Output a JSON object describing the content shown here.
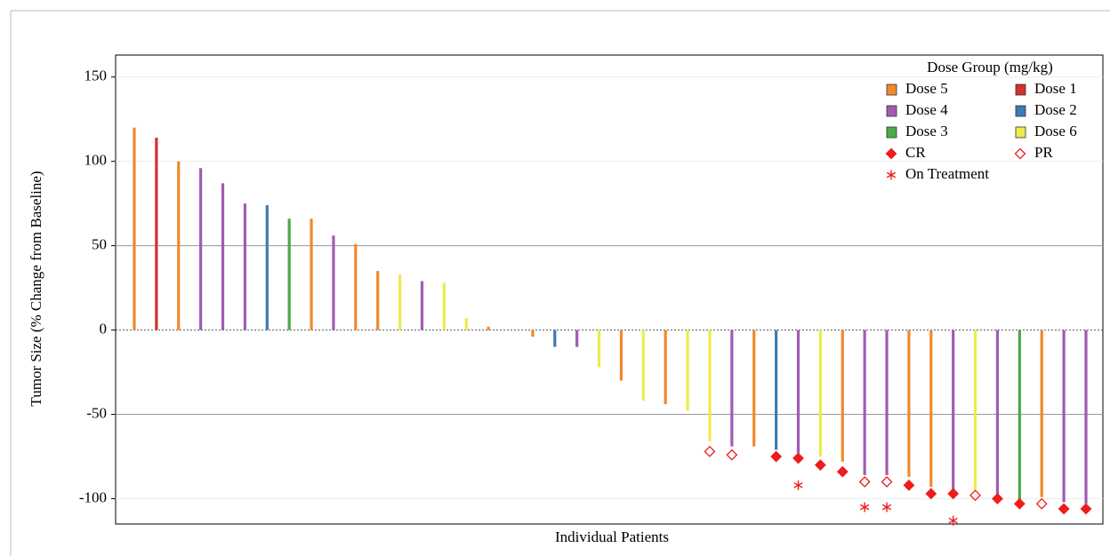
{
  "chart_data": {
    "type": "waterfall",
    "x_label": "Individual Patients",
    "y_label": "Tumor Size (% Change from Baseline)",
    "legend_title": "Dose Group (mg/kg)",
    "ylim": [
      -115,
      163
    ],
    "yticks": [
      -100,
      -50,
      0,
      50,
      100,
      150
    ],
    "reference_lines": [
      -50,
      50
    ],
    "grid": true,
    "series": [
      {
        "name": "Dose 5",
        "color": "#f0892b",
        "values": [
          120,
          null,
          100,
          null,
          null,
          null,
          null,
          null,
          66,
          null,
          51,
          35,
          null,
          null,
          null,
          null,
          2,
          null,
          -4,
          null,
          null,
          null,
          -30,
          null,
          -44,
          null,
          null,
          null,
          -69,
          null,
          null,
          null,
          -78,
          null,
          null,
          -87,
          -93,
          null,
          null,
          null,
          null,
          -99,
          null,
          null
        ]
      },
      {
        "name": "Dose 1",
        "color": "#d7302f",
        "values": [
          null,
          114,
          null,
          null,
          null,
          null,
          null,
          null,
          null,
          null,
          null,
          null,
          null,
          null,
          null,
          null,
          null,
          null,
          null,
          null,
          null,
          null,
          null,
          null,
          null,
          null,
          null,
          null,
          null,
          null,
          null,
          null,
          null,
          null,
          null,
          null,
          null,
          null,
          null,
          null,
          null,
          null,
          null,
          null
        ]
      },
      {
        "name": "Dose 4",
        "color": "#a05bb4",
        "values": [
          null,
          null,
          null,
          96,
          87,
          75,
          null,
          null,
          null,
          56,
          null,
          null,
          null,
          29,
          null,
          null,
          null,
          null,
          null,
          null,
          -10,
          null,
          null,
          null,
          null,
          null,
          null,
          -69,
          null,
          null,
          -73,
          null,
          null,
          -86,
          -86,
          null,
          null,
          -95,
          null,
          -99,
          null,
          null,
          -102,
          -103
        ]
      },
      {
        "name": "Dose 2",
        "color": "#3d7bb3",
        "values": [
          null,
          null,
          null,
          null,
          null,
          null,
          74,
          null,
          null,
          null,
          null,
          null,
          null,
          null,
          null,
          null,
          null,
          null,
          null,
          -10,
          null,
          null,
          null,
          null,
          null,
          null,
          null,
          null,
          null,
          -71,
          null,
          null,
          null,
          null,
          null,
          null,
          null,
          null,
          null,
          null,
          null,
          null,
          null,
          null
        ]
      },
      {
        "name": "Dose 3",
        "color": "#4aab47",
        "values": [
          null,
          null,
          null,
          null,
          null,
          null,
          null,
          66,
          null,
          null,
          null,
          null,
          null,
          null,
          null,
          null,
          null,
          null,
          null,
          null,
          null,
          null,
          null,
          null,
          null,
          null,
          null,
          null,
          null,
          null,
          null,
          null,
          null,
          null,
          null,
          null,
          null,
          null,
          null,
          null,
          -103,
          null,
          null,
          null
        ]
      },
      {
        "name": "Dose 6",
        "color": "#eeea4c",
        "values": [
          null,
          null,
          null,
          null,
          null,
          null,
          null,
          null,
          null,
          null,
          null,
          null,
          33,
          null,
          28,
          7,
          null,
          null,
          null,
          null,
          null,
          -22,
          null,
          -42,
          null,
          -48,
          -66,
          null,
          null,
          null,
          null,
          -75,
          null,
          null,
          null,
          null,
          null,
          null,
          -95,
          null,
          null,
          null,
          null,
          null
        ]
      }
    ],
    "markers": [
      {
        "name": "CR",
        "color": "#ee1c1c",
        "shape": "diamond-filled",
        "values": [
          null,
          null,
          null,
          null,
          null,
          null,
          null,
          null,
          null,
          null,
          null,
          null,
          null,
          null,
          null,
          null,
          null,
          null,
          null,
          null,
          null,
          null,
          null,
          null,
          null,
          null,
          null,
          null,
          null,
          -75,
          -76,
          -80,
          -84,
          null,
          null,
          -92,
          -97,
          -97,
          null,
          -100,
          -103,
          null,
          -106,
          -106
        ]
      },
      {
        "name": "PR",
        "color": "#ee1c1c",
        "shape": "diamond-open",
        "values": [
          null,
          null,
          null,
          null,
          null,
          null,
          null,
          null,
          null,
          null,
          null,
          null,
          null,
          null,
          null,
          null,
          null,
          null,
          null,
          null,
          null,
          null,
          null,
          null,
          null,
          null,
          -72,
          -74,
          null,
          null,
          null,
          null,
          null,
          -90,
          -90,
          null,
          null,
          null,
          -98,
          null,
          null,
          -103,
          null,
          null
        ]
      },
      {
        "name": "On Treatment",
        "color": "#ee1c1c",
        "shape": "asterisk",
        "values": [
          null,
          null,
          null,
          null,
          null,
          null,
          null,
          null,
          null,
          null,
          null,
          null,
          null,
          null,
          null,
          null,
          null,
          null,
          null,
          null,
          null,
          null,
          null,
          null,
          null,
          null,
          null,
          null,
          null,
          null,
          -92,
          null,
          null,
          -105,
          -105,
          null,
          null,
          -113,
          null,
          null,
          null,
          null,
          null,
          null
        ]
      }
    ]
  }
}
